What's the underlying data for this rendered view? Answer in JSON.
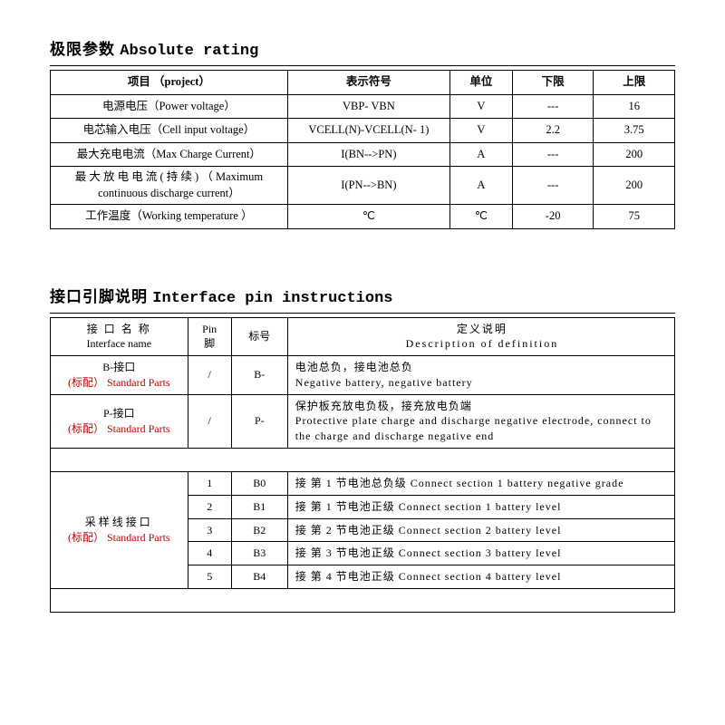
{
  "section1": {
    "title_cn": "极限参数",
    "title_en": "Absolute rating",
    "headers": {
      "project": "项目 （project）",
      "symbol": "表示符号",
      "unit": "单位",
      "lower": "下限",
      "upper": "上限"
    },
    "rows": [
      {
        "project": "电源电压（Power voltage）",
        "symbol": "VBP- VBN",
        "unit": "V",
        "lower": "---",
        "upper": "16"
      },
      {
        "project": "电芯输入电压（Cell input voltage）",
        "symbol": "VCELL(N)-VCELL(N- 1)",
        "unit": "V",
        "lower": "2.2",
        "upper": "3.75"
      },
      {
        "project": "最大充电电流（Max Charge Current）",
        "symbol": "I(BN-->PN)",
        "unit": "A",
        "lower": "---",
        "upper": "200"
      },
      {
        "project": "最 大 放 电 电 流 ( 持 续 ) （ Maximum continuous discharge current）",
        "symbol": "I(PN-->BN)",
        "unit": "A",
        "lower": "---",
        "upper": "200"
      },
      {
        "project": "工作温度（Working temperature ）",
        "symbol": "℃",
        "unit": "℃",
        "lower": "-20",
        "upper": "75"
      }
    ]
  },
  "section2": {
    "title_cn": "接口引脚说明",
    "title_en": "Interface pin instructions",
    "headers": {
      "iface_cn": "接 口 名 称",
      "iface_en": "Interface name",
      "pin_cn": "Pin",
      "pin_cn2": "脚",
      "label": "标号",
      "desc_cn": "定义说明",
      "desc_en": "Description  of  definition"
    },
    "rows_top": [
      {
        "iface_name": "B-接口",
        "std": "(标配） Standard Parts",
        "pin": "/",
        "label": "B-",
        "desc_cn": "电池总负，接电池总负",
        "desc_en": "Negative battery,  negative battery"
      },
      {
        "iface_name": "P-接口",
        "std": "(标配） Standard Parts",
        "pin": "/",
        "label": "P-",
        "desc_cn": "保护板充放电负极，接充放电负端",
        "desc_en": "Protective plate charge and discharge negative electrode, connect to the charge and discharge negative end"
      }
    ],
    "sample_block": {
      "iface_name": "采样线接口",
      "std": "(标配） Standard Parts",
      "rows": [
        {
          "pin": "1",
          "label": "B0",
          "desc": "接 第  1 节电池总负级  Connect section 1 battery negative grade"
        },
        {
          "pin": "2",
          "label": "B1",
          "desc": "接 第  1 节电池正级  Connect section 1 battery level"
        },
        {
          "pin": "3",
          "label": "B2",
          "desc": "接 第  2 节电池正级  Connect section 2 battery level"
        },
        {
          "pin": "4",
          "label": "B3",
          "desc": "接 第  3 节电池正级  Connect section 3 battery level"
        },
        {
          "pin": "5",
          "label": "B4",
          "desc": "接 第  4 节电池正级  Connect section 4 battery level"
        }
      ]
    }
  }
}
